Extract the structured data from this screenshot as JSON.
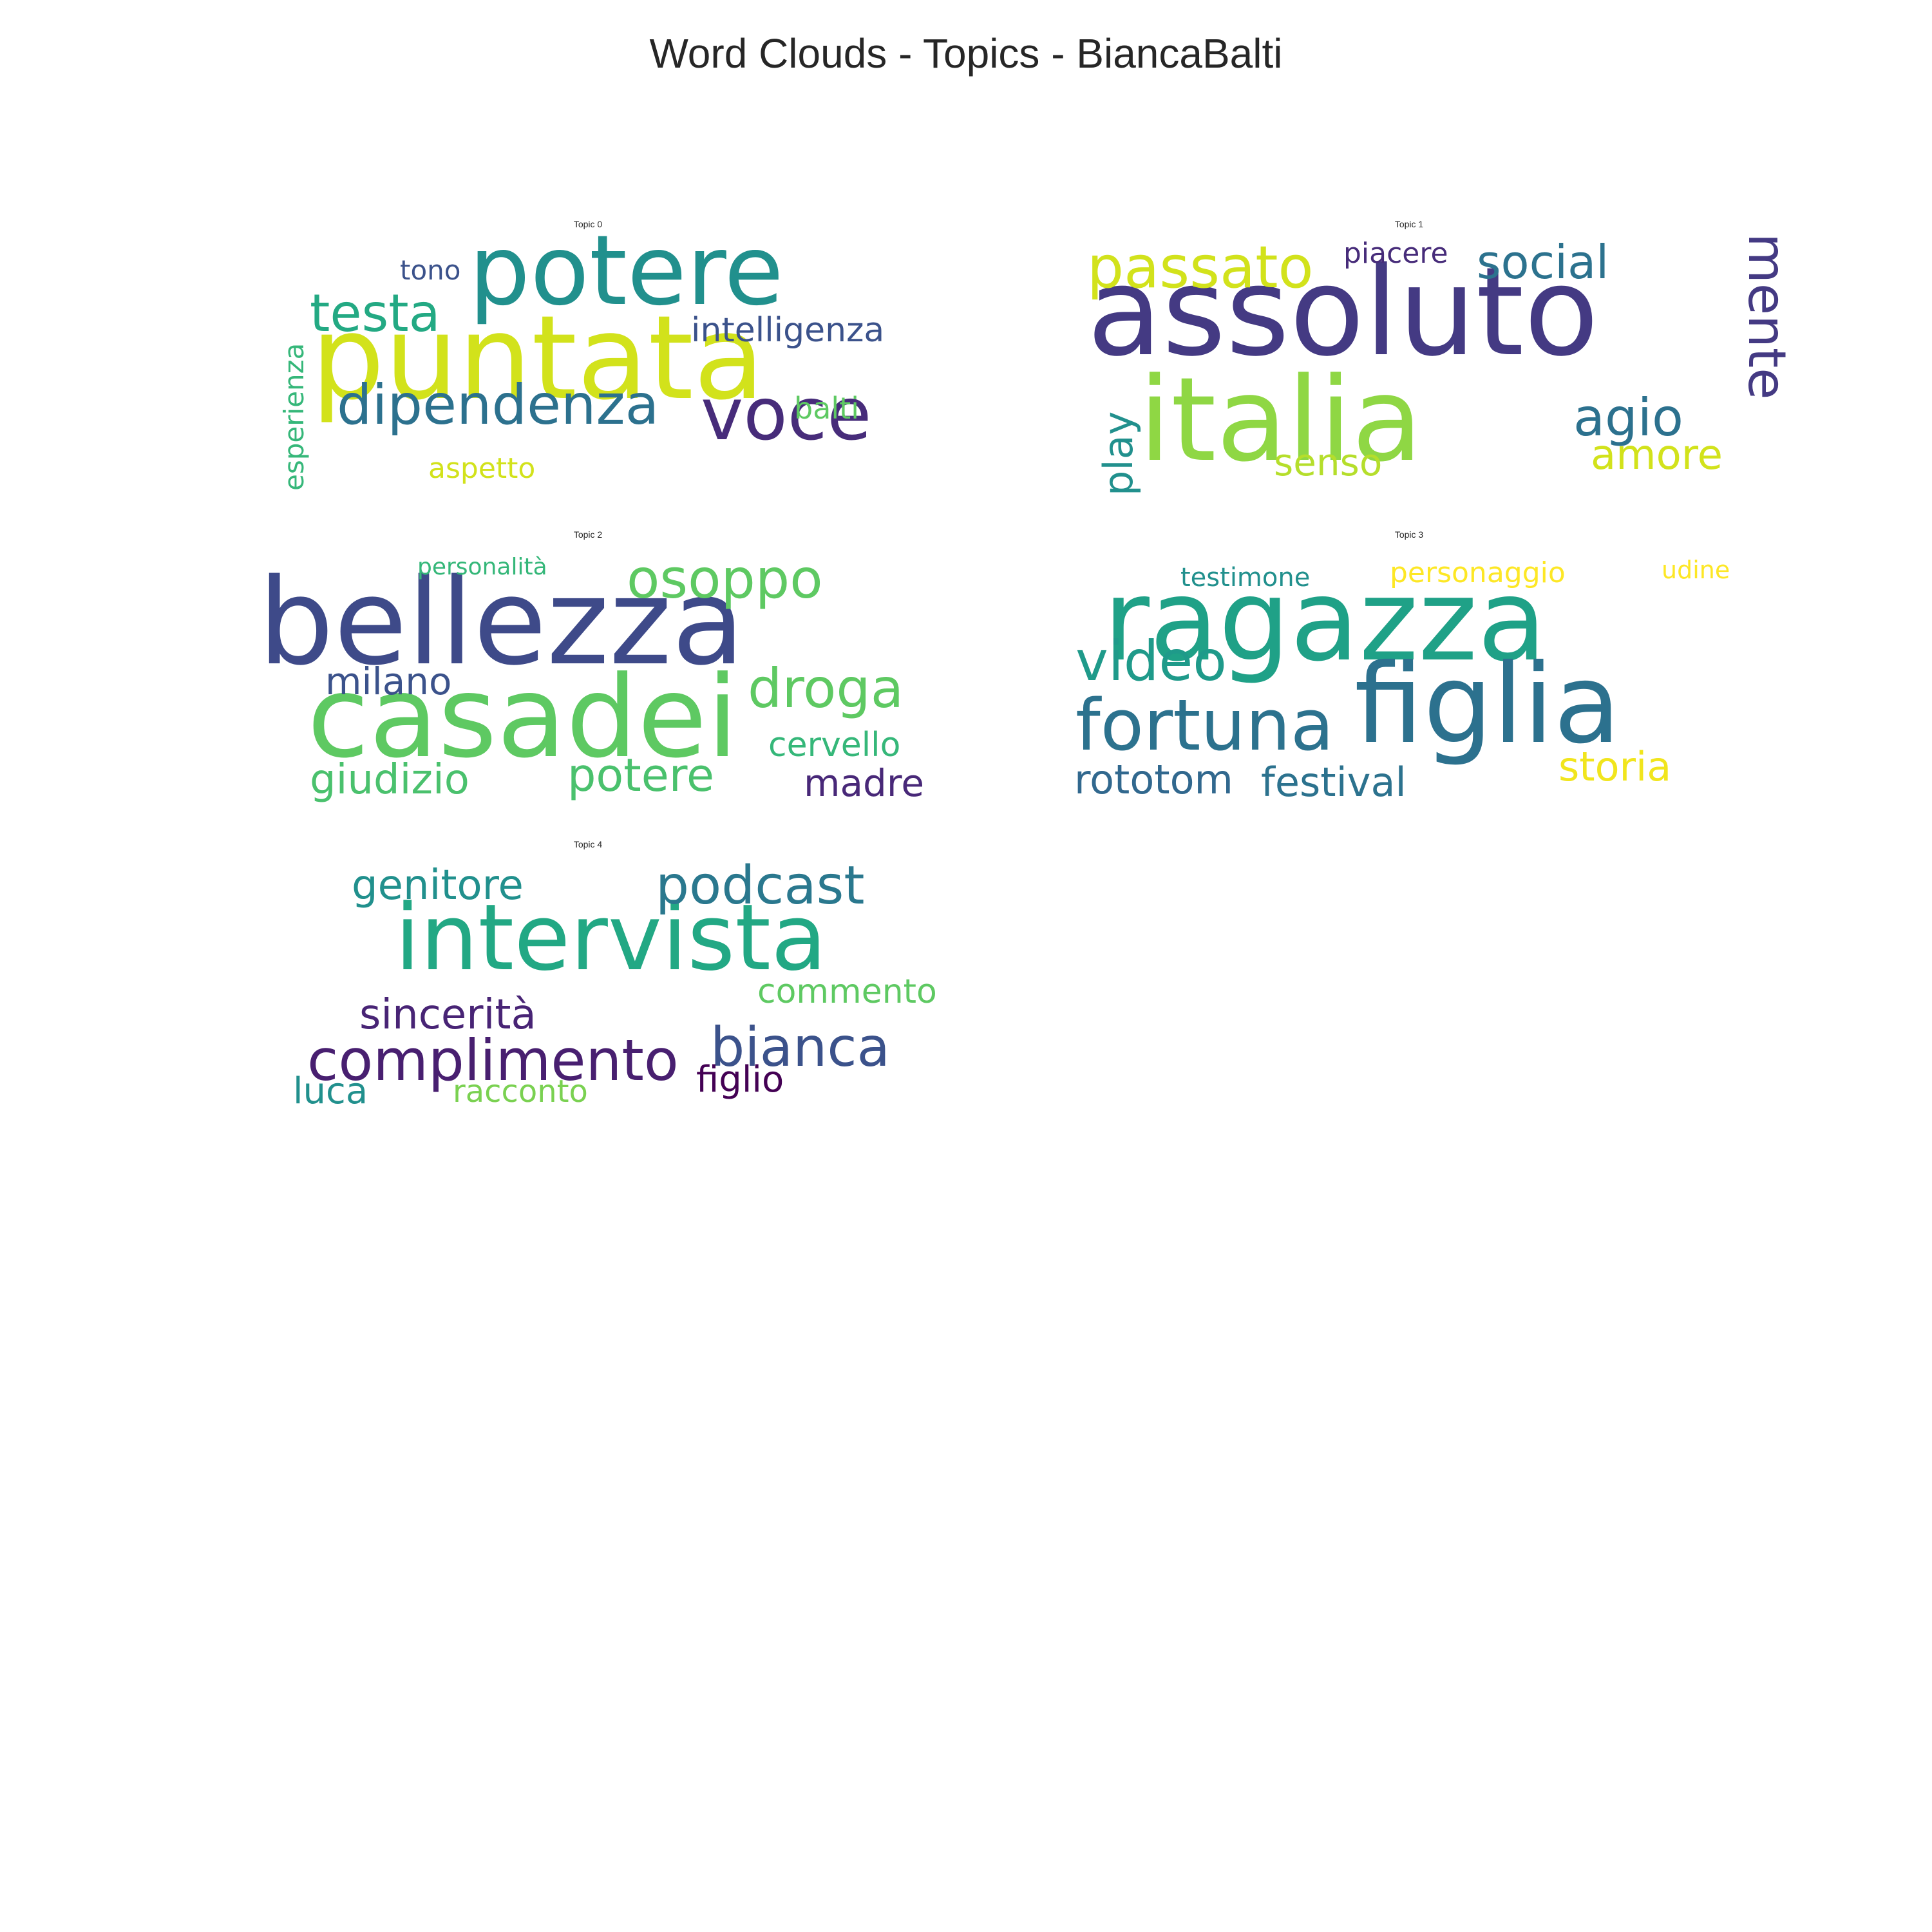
{
  "title": "Word Clouds - Topics - BiancaBalti",
  "chart_data": [
    {
      "type": "wordcloud",
      "title": "Topic 0",
      "words": [
        {
          "text": "puntata",
          "color": "#d2e21b"
        },
        {
          "text": "potere",
          "color": "#21908d"
        },
        {
          "text": "voce",
          "color": "#472c7a"
        },
        {
          "text": "dipendenza",
          "color": "#2c718e"
        },
        {
          "text": "testa",
          "color": "#23a983"
        },
        {
          "text": "intelligenza",
          "color": "#3b528b"
        },
        {
          "text": "tono",
          "color": "#3b528b"
        },
        {
          "text": "esperienza",
          "color": "#35b779"
        },
        {
          "text": "balti",
          "color": "#5ec962"
        },
        {
          "text": "aspetto",
          "color": "#d2e21b"
        }
      ]
    },
    {
      "type": "wordcloud",
      "title": "Topic 1",
      "words": [
        {
          "text": "assoluto",
          "color": "#443a83"
        },
        {
          "text": "italia",
          "color": "#8fd744"
        },
        {
          "text": "passato",
          "color": "#d2e21b"
        },
        {
          "text": "social",
          "color": "#2c728e"
        },
        {
          "text": "piacere",
          "color": "#472c7a"
        },
        {
          "text": "mente",
          "color": "#443a83"
        },
        {
          "text": "agio",
          "color": "#2c718e"
        },
        {
          "text": "amore",
          "color": "#d2e21b"
        },
        {
          "text": "play",
          "color": "#21908d"
        },
        {
          "text": "senso",
          "color": "#b5de2b"
        }
      ]
    },
    {
      "type": "wordcloud",
      "title": "Topic 2",
      "words": [
        {
          "text": "bellezza",
          "color": "#3e4a89"
        },
        {
          "text": "casadei",
          "color": "#5ec962"
        },
        {
          "text": "osoppo",
          "color": "#5ec962"
        },
        {
          "text": "droga",
          "color": "#5ec962"
        },
        {
          "text": "milano",
          "color": "#3b528b"
        },
        {
          "text": "personalità",
          "color": "#35b779"
        },
        {
          "text": "cervello",
          "color": "#35b779"
        },
        {
          "text": "giudizio",
          "color": "#4ac16d"
        },
        {
          "text": "potere",
          "color": "#4ac16d"
        },
        {
          "text": "madre",
          "color": "#482878"
        }
      ]
    },
    {
      "type": "wordcloud",
      "title": "Topic 3",
      "words": [
        {
          "text": "ragazza",
          "color": "#1fa187"
        },
        {
          "text": "figlia",
          "color": "#2c718e"
        },
        {
          "text": "fortuna",
          "color": "#2c728e"
        },
        {
          "text": "video",
          "color": "#1f9a8a"
        },
        {
          "text": "testimone",
          "color": "#21908d"
        },
        {
          "text": "personaggio",
          "color": "#fde725"
        },
        {
          "text": "udine",
          "color": "#fde725"
        },
        {
          "text": "rototom",
          "color": "#31688e"
        },
        {
          "text": "festival",
          "color": "#2c728e"
        },
        {
          "text": "storia",
          "color": "#f1e51d"
        }
      ]
    },
    {
      "type": "wordcloud",
      "title": "Topic 4",
      "words": [
        {
          "text": "intervista",
          "color": "#22a884"
        },
        {
          "text": "podcast",
          "color": "#2a788e"
        },
        {
          "text": "complimento",
          "color": "#481f70"
        },
        {
          "text": "bianca",
          "color": "#3b528b"
        },
        {
          "text": "genitore",
          "color": "#21908d"
        },
        {
          "text": "sincerità",
          "color": "#482475"
        },
        {
          "text": "commento",
          "color": "#5ec962"
        },
        {
          "text": "luca",
          "color": "#21908d"
        },
        {
          "text": "racconto",
          "color": "#7ad151"
        },
        {
          "text": "figlio",
          "color": "#440154"
        }
      ]
    }
  ]
}
